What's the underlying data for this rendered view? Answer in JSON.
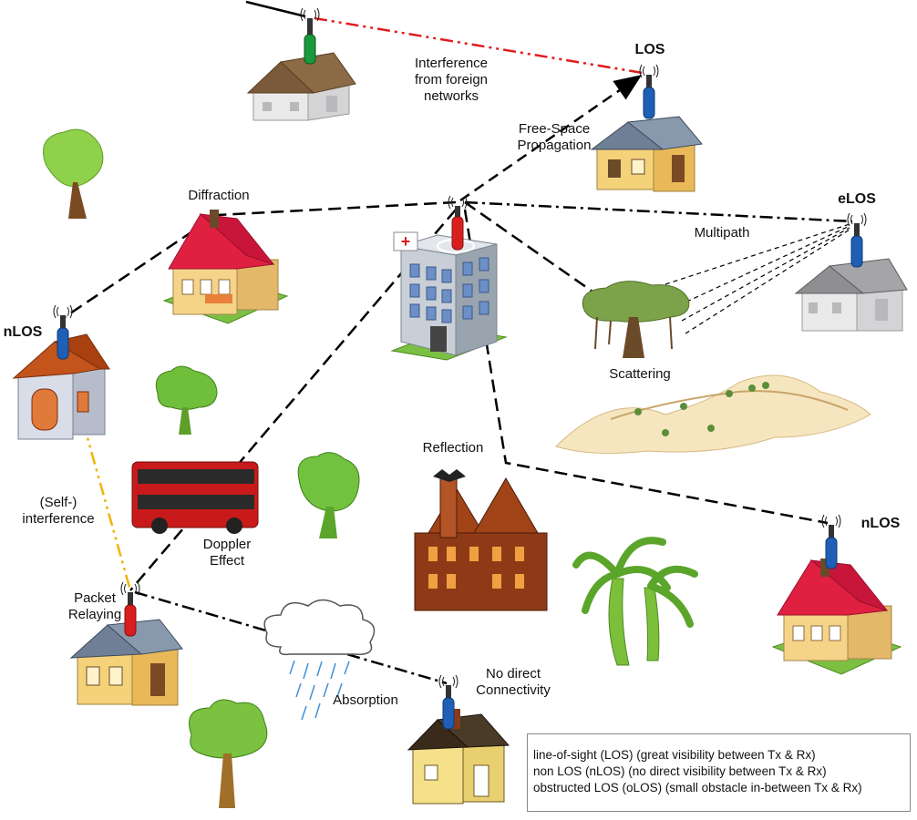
{
  "labels": {
    "los": "LOS",
    "elos": "eLOS",
    "nlos_left": "nLOS",
    "nlos_right": "nLOS",
    "interference": "Interference\nfrom foreign\nnetworks",
    "free_space": "Free-Space\nPropagation",
    "diffraction": "Diffraction",
    "multipath": "Multipath",
    "scattering": "Scattering",
    "reflection": "Reflection",
    "self_interference": "(Self-)\ninterference",
    "doppler": "Doppler\nEffect",
    "packet_relaying": "Packet\nRelaying",
    "absorption": "Absorption",
    "no_direct": "No direct\nConnectivity"
  },
  "legend": [
    "line-of-sight (LOS) (great visibility between Tx & Rx)",
    "non LOS (nLOS) (no direct visibility between Tx & Rx)",
    "obstructed LOS (oLOS) (small obstacle in-between Tx & Rx)"
  ],
  "colors": {
    "antenna_blue": "#1f5fb5",
    "antenna_red": "#d81e1e",
    "antenna_green": "#1a9a3c",
    "interference_line": "#e21b1b",
    "self_interference_line": "#f0b400",
    "link_line": "#000000"
  }
}
